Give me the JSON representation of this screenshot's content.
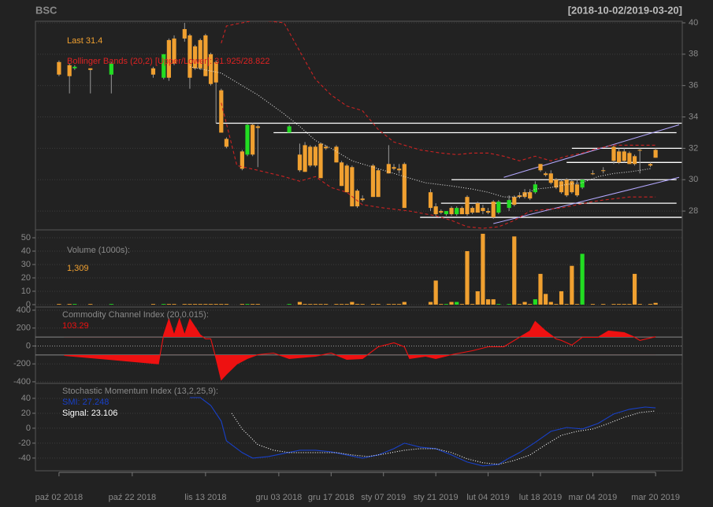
{
  "chart_data": [
    {
      "type": "candlestick",
      "title": "BSC",
      "subtitle": "[2018-10-02/2019-03-20]",
      "xlim": [
        -4.5,
        119.1
      ],
      "ylim": [
        26.8,
        40.1
      ],
      "yticks": [
        28,
        30,
        32,
        34,
        36,
        38,
        40
      ],
      "y_axis": "right",
      "grid": true,
      "up_color": "#22dd22",
      "down_color": "#f0a030",
      "x": [
        0,
        2,
        3,
        6,
        10,
        18,
        20,
        21,
        22,
        24,
        25,
        26,
        27,
        28,
        29,
        30,
        31,
        32,
        35,
        36,
        37,
        38,
        44,
        46,
        47,
        48,
        49,
        50,
        51,
        53,
        54,
        55,
        56,
        57,
        58,
        60,
        61,
        63,
        64,
        65,
        66,
        71,
        72,
        73,
        74,
        75,
        76,
        77,
        78,
        79,
        80,
        81,
        82,
        83,
        84,
        86,
        87,
        88,
        89,
        90,
        91,
        92,
        93,
        94,
        95,
        96,
        97,
        98,
        99,
        100,
        102,
        104,
        106,
        107,
        108,
        109,
        110,
        111,
        113,
        114
      ],
      "open": [
        37.5,
        37.3,
        37.1,
        37.1,
        36.7,
        37.1,
        36.5,
        38.9,
        39.0,
        39.6,
        39.2,
        38.5,
        38.9,
        39.2,
        38.0,
        37.5,
        35.7,
        32.6,
        31.8,
        31.6,
        33.5,
        33.4,
        33.0,
        31.6,
        32.2,
        32.1,
        32.1,
        32.3,
        32.1,
        32.1,
        31.1,
        30.9,
        30.8,
        29.3,
        28.8,
        30.9,
        30.6,
        31.0,
        30.8,
        30.7,
        31.0,
        29.2,
        28.3,
        28.0,
        27.8,
        28.2,
        27.8,
        28.2,
        28.9,
        28.2,
        28.5,
        28.2,
        28.0,
        28.6,
        27.9,
        28.2,
        28.9,
        29.0,
        29.2,
        29.2,
        29.2,
        31.0,
        30.4,
        30.4,
        30.0,
        29.9,
        30.0,
        29.9,
        29.7,
        29.5,
        30.4,
        30.6,
        32.1,
        31.8,
        31.8,
        31.7,
        31.5,
        31.9,
        31.0,
        31.9
      ],
      "high": [
        37.6,
        37.4,
        37.3,
        37.1,
        37.5,
        37.2,
        38.0,
        39.0,
        39.2,
        40.0,
        39.3,
        38.6,
        39.0,
        39.3,
        38.1,
        37.6,
        35.8,
        32.7,
        31.9,
        33.6,
        33.6,
        33.5,
        33.5,
        32.3,
        32.4,
        32.2,
        32.2,
        32.3,
        32.2,
        32.2,
        31.2,
        31.0,
        30.9,
        29.4,
        29.0,
        31.0,
        30.7,
        32.2,
        31.0,
        31.0,
        31.1,
        29.4,
        28.5,
        28.1,
        28.0,
        28.3,
        28.3,
        28.3,
        29.0,
        28.3,
        28.6,
        28.4,
        28.2,
        28.7,
        28.7,
        29.0,
        29.0,
        29.2,
        29.4,
        29.4,
        29.9,
        31.0,
        30.5,
        30.6,
        30.1,
        30.0,
        30.1,
        30.0,
        30.0,
        30.0,
        30.6,
        30.8,
        32.2,
        32.0,
        32.0,
        31.8,
        31.6,
        32.0,
        31.1,
        32.0
      ],
      "low": [
        36.6,
        35.5,
        37.0,
        35.5,
        35.5,
        36.5,
        36.4,
        36.3,
        37.3,
        38.8,
        35.8,
        37.0,
        37.0,
        36.6,
        36.0,
        33.6,
        33.0,
        32.0,
        30.6,
        31.5,
        31.5,
        30.8,
        33.0,
        30.5,
        30.5,
        30.8,
        30.8,
        30.1,
        31.9,
        31.1,
        29.6,
        29.2,
        28.3,
        28.2,
        28.6,
        28.9,
        28.9,
        30.4,
        30.6,
        30.4,
        28.2,
        28.0,
        27.7,
        27.8,
        27.7,
        27.7,
        27.7,
        27.8,
        27.7,
        27.8,
        27.9,
        27.8,
        27.8,
        27.5,
        27.8,
        28.0,
        28.3,
        28.8,
        28.8,
        28.7,
        29.1,
        30.5,
        30.2,
        29.7,
        29.4,
        29.1,
        28.9,
        29.1,
        28.9,
        29.4,
        30.3,
        30.4,
        31.0,
        31.0,
        31.1,
        31.0,
        30.9,
        30.4,
        30.8,
        31.4
      ],
      "close": [
        36.7,
        36.6,
        37.2,
        37.0,
        37.4,
        36.7,
        38.0,
        36.5,
        37.4,
        39.0,
        36.5,
        37.1,
        37.1,
        36.6,
        36.1,
        36.2,
        33.0,
        32.1,
        30.7,
        33.5,
        31.6,
        33.3,
        33.4,
        30.6,
        30.5,
        30.9,
        30.9,
        30.1,
        32.0,
        31.1,
        29.6,
        29.2,
        28.3,
        28.3,
        28.7,
        28.9,
        28.9,
        30.4,
        30.7,
        30.6,
        28.2,
        28.2,
        27.8,
        27.9,
        28.0,
        27.8,
        28.2,
        27.8,
        27.8,
        27.9,
        27.9,
        28.0,
        27.9,
        27.6,
        28.6,
        28.7,
        28.4,
        28.9,
        28.9,
        28.8,
        29.7,
        30.6,
        30.3,
        29.8,
        29.5,
        29.2,
        29.0,
        29.2,
        29.0,
        30.0,
        30.4,
        30.6,
        31.2,
        31.1,
        31.2,
        31.0,
        31.0,
        31.9,
        30.9,
        31.4
      ],
      "series": [
        {
          "color": "#cc2222",
          "dash": "dashed",
          "x": [
            31,
            32,
            38,
            43,
            46,
            49,
            52,
            55,
            58,
            61,
            64,
            69,
            73,
            76,
            79,
            82,
            85,
            88,
            91,
            94,
            97,
            100,
            103,
            106,
            109,
            114
          ],
          "values": [
            38.7,
            39.8,
            40.2,
            40.0,
            38.2,
            36.4,
            35.4,
            34.7,
            34.4,
            33.2,
            32.4,
            31.9,
            31.7,
            31.6,
            31.7,
            31.7,
            31.5,
            31.2,
            31.5,
            31.2,
            31.5,
            31.7,
            32.0,
            32.2,
            32.2,
            32.2
          ]
        },
        {
          "color": "#cc2222",
          "dash": "dashed",
          "x": [
            31,
            34,
            38,
            43,
            46,
            49,
            52,
            55,
            58,
            62,
            67,
            72,
            75,
            78,
            81,
            84,
            87,
            90,
            93,
            96,
            99,
            102,
            104,
            109,
            114
          ],
          "values": [
            34.9,
            30.9,
            30.6,
            30.2,
            29.9,
            30.2,
            29.5,
            29.2,
            28.4,
            28.2,
            28.0,
            27.7,
            27.4,
            27.0,
            26.9,
            27.0,
            27.4,
            28.0,
            28.1,
            28.2,
            28.4,
            28.6,
            28.7,
            28.9,
            28.9
          ]
        },
        {
          "color": "#dddddd",
          "dash": "dotted",
          "x": [
            25,
            31,
            34,
            38,
            43,
            46,
            49,
            52,
            56,
            61,
            66,
            70,
            75,
            79,
            82,
            85,
            88,
            91,
            94,
            97,
            100,
            103,
            106,
            109,
            113
          ],
          "values": [
            37.2,
            36.8,
            36.2,
            35.4,
            34.2,
            33.4,
            32.5,
            32.0,
            31.2,
            30.7,
            30.2,
            29.8,
            29.6,
            29.4,
            29.2,
            28.9,
            28.9,
            29.4,
            29.5,
            29.7,
            29.8,
            30.2,
            30.4,
            30.5,
            30.7
          ]
        }
      ],
      "hlines": [
        {
          "value": 33.6,
          "x": [
            30,
            119
          ]
        },
        {
          "value": 33.0,
          "x": [
            41,
            118
          ]
        },
        {
          "value": 32.0,
          "x": [
            98,
            119
          ]
        },
        {
          "value": 31.1,
          "x": [
            97,
            119
          ]
        },
        {
          "value": 30.0,
          "x": [
            75,
            118
          ]
        },
        {
          "value": 28.5,
          "x": [
            73,
            118
          ]
        },
        {
          "value": 27.6,
          "x": [
            69,
            119
          ]
        }
      ],
      "hline_color": "#ffffff",
      "trendlines": [
        {
          "x": [
            85,
            118.5
          ],
          "y": [
            30.15,
            33.5
          ]
        },
        {
          "x": [
            83,
            118.5
          ],
          "y": [
            27.2,
            30.15
          ]
        }
      ],
      "trendline_color": "#b4a8ff",
      "legend": [
        {
          "text": "Last 31.4",
          "color": "#f0a030"
        },
        {
          "text": "Bollinger Bands (20,2) [Upper/Lower]: 31.925/28.822",
          "color": "#dd2222"
        }
      ]
    },
    {
      "type": "bar",
      "xlim": [
        -4.5,
        119.1
      ],
      "ylim": [
        -1.8,
        55.9
      ],
      "yticks": [
        0,
        10,
        20,
        30,
        40,
        50
      ],
      "y_axis": "left",
      "grid": true,
      "x": [
        0,
        2,
        3,
        6,
        10,
        18,
        20,
        21,
        22,
        24,
        25,
        26,
        27,
        28,
        29,
        30,
        31,
        32,
        35,
        36,
        37,
        38,
        44,
        46,
        47,
        48,
        49,
        50,
        51,
        53,
        54,
        55,
        56,
        57,
        58,
        60,
        61,
        63,
        64,
        65,
        66,
        71,
        72,
        73,
        74,
        75,
        76,
        77,
        78,
        79,
        80,
        81,
        82,
        83,
        84,
        86,
        87,
        88,
        89,
        90,
        91,
        92,
        93,
        94,
        95,
        96,
        97,
        98,
        99,
        100,
        102,
        104,
        106,
        107,
        108,
        109,
        110,
        111,
        113,
        114
      ],
      "values": [
        0.5,
        0.5,
        0.5,
        0.5,
        0.5,
        0.5,
        0.5,
        0.5,
        0.5,
        0.5,
        0.5,
        0.5,
        0.5,
        0.5,
        0.5,
        0.5,
        0.5,
        0.5,
        0.5,
        0.5,
        0.5,
        0.5,
        0.5,
        2,
        0.5,
        0.5,
        0.5,
        0.5,
        0.5,
        0.5,
        0.5,
        0.5,
        2,
        0.5,
        0.5,
        0.5,
        0.5,
        0.5,
        0.5,
        0.5,
        2,
        2,
        18,
        0.5,
        0.5,
        2,
        2,
        0.5,
        40,
        0.5,
        10,
        53,
        4,
        4,
        0.5,
        0.5,
        51,
        0.5,
        2,
        0.5,
        4,
        23,
        8,
        2,
        0.5,
        10,
        0.5,
        29,
        0.5,
        38,
        0.5,
        0.5,
        0.5,
        0.5,
        0.5,
        0.5,
        23,
        0.5,
        0.5,
        1.309
      ],
      "legend": [
        {
          "text": "Volume (1000s):",
          "color": "#8a8a8a"
        },
        {
          "text": "1,309",
          "color": "#f0a030"
        }
      ]
    },
    {
      "type": "line",
      "xlim": [
        -4.5,
        119.1
      ],
      "ylim": [
        -418,
        435
      ],
      "yticks": [
        -400,
        -200,
        0,
        200,
        400
      ],
      "y_axis": "left",
      "grid": true,
      "ref_lines": [
        -100,
        100
      ],
      "zero_line": 0,
      "fill_color": "#ee1111",
      "series": [
        {
          "color": "#ee1111",
          "dash": "solid",
          "x": [
            1,
            19,
            20,
            21,
            22,
            23,
            24,
            25,
            27,
            28,
            29,
            30,
            31,
            32,
            34,
            36,
            38,
            41,
            44,
            49,
            52,
            55,
            58,
            61,
            64,
            66,
            67,
            70,
            72,
            75,
            79,
            82,
            85,
            87,
            90,
            91,
            93,
            95,
            96,
            98,
            100,
            103,
            105,
            108,
            110,
            111,
            114
          ],
          "values": [
            -105,
            -200,
            123,
            300,
            123,
            300,
            123,
            300,
            123,
            80,
            80,
            -140,
            -378,
            -316,
            -202,
            -140,
            -97,
            -79,
            -140,
            -114,
            -79,
            -150,
            -140,
            -9,
            35,
            -9,
            -140,
            -114,
            -140,
            -97,
            -53,
            -9,
            -9,
            62,
            167,
            273,
            167,
            79,
            62,
            9,
            97,
            97,
            167,
            149,
            97,
            62,
            103.29
          ]
        }
      ],
      "legend": [
        {
          "text": "Commodity Channel Index (20,0.015):",
          "color": "#8a8a8a"
        },
        {
          "text": "103.29",
          "color": "#ee1111"
        }
      ]
    },
    {
      "type": "line",
      "xlim": [
        -4.5,
        119.1
      ],
      "ylim": [
        -57,
        60
      ],
      "yticks": [
        -40,
        -20,
        0,
        20,
        40
      ],
      "y_axis": "left",
      "grid": true,
      "xticks": [
        {
          "value": 0,
          "label": "paź 02 2018"
        },
        {
          "value": 14,
          "label": "paź 22 2018"
        },
        {
          "value": 28,
          "label": "lis 13 2018"
        },
        {
          "value": 42,
          "label": "gru 03 2018"
        },
        {
          "value": 52,
          "label": "gru 17 2018"
        },
        {
          "value": 62,
          "label": "sty 07 2019"
        },
        {
          "value": 72,
          "label": "sty 21 2019"
        },
        {
          "value": 82,
          "label": "lut 04 2019"
        },
        {
          "value": 92,
          "label": "lut 18 2019"
        },
        {
          "value": 102,
          "label": "mar 04 2019"
        },
        {
          "value": 114,
          "label": "mar 20 2019"
        }
      ],
      "series": [
        {
          "color": "#1840c8",
          "dash": "solid",
          "x": [
            25,
            27,
            29,
            31,
            32,
            35,
            37,
            40,
            43,
            46,
            49,
            52,
            55,
            58,
            61,
            64,
            66,
            69,
            72,
            75,
            78,
            81,
            84,
            86,
            88,
            91,
            94,
            97,
            100,
            103,
            106,
            109,
            112,
            114
          ],
          "values": [
            41,
            41,
            30.5,
            9.5,
            -16.8,
            -32.6,
            -40,
            -37.9,
            -33.7,
            -29.5,
            -29.5,
            -31.6,
            -35.8,
            -40,
            -35.8,
            -27.4,
            -20,
            -25.3,
            -27.4,
            -35.8,
            -45.3,
            -50.5,
            -48.4,
            -40,
            -32.6,
            -19,
            -4.2,
            1,
            -1,
            6.3,
            19,
            25.3,
            28.4,
            27.248
          ]
        },
        {
          "color": "#ffffff",
          "dash": "dotted",
          "x": [
            33,
            35,
            38,
            41,
            44,
            47,
            50,
            53,
            56,
            59,
            62,
            66,
            69,
            72,
            75,
            78,
            81,
            84,
            87,
            90,
            93,
            96,
            99,
            102,
            105,
            108,
            111,
            114
          ],
          "values": [
            20,
            -1,
            -22,
            -29.5,
            -32.6,
            -32.6,
            -32.6,
            -32.6,
            -35.8,
            -37.9,
            -34.7,
            -29.5,
            -27.4,
            -27.4,
            -32.6,
            -41,
            -46.3,
            -48.4,
            -43.2,
            -35.8,
            -22.1,
            -9.5,
            -4.2,
            -1,
            6.3,
            14.7,
            21,
            23.106
          ]
        }
      ],
      "legend": [
        {
          "text": "Stochastic Momentum Index (13,2,25,9):",
          "color": "#8a8a8a"
        },
        {
          "text": "SMI: 27.248",
          "color": "#1840c8"
        },
        {
          "text": "Signal: 23.106",
          "color": "#ffffff"
        }
      ]
    }
  ]
}
